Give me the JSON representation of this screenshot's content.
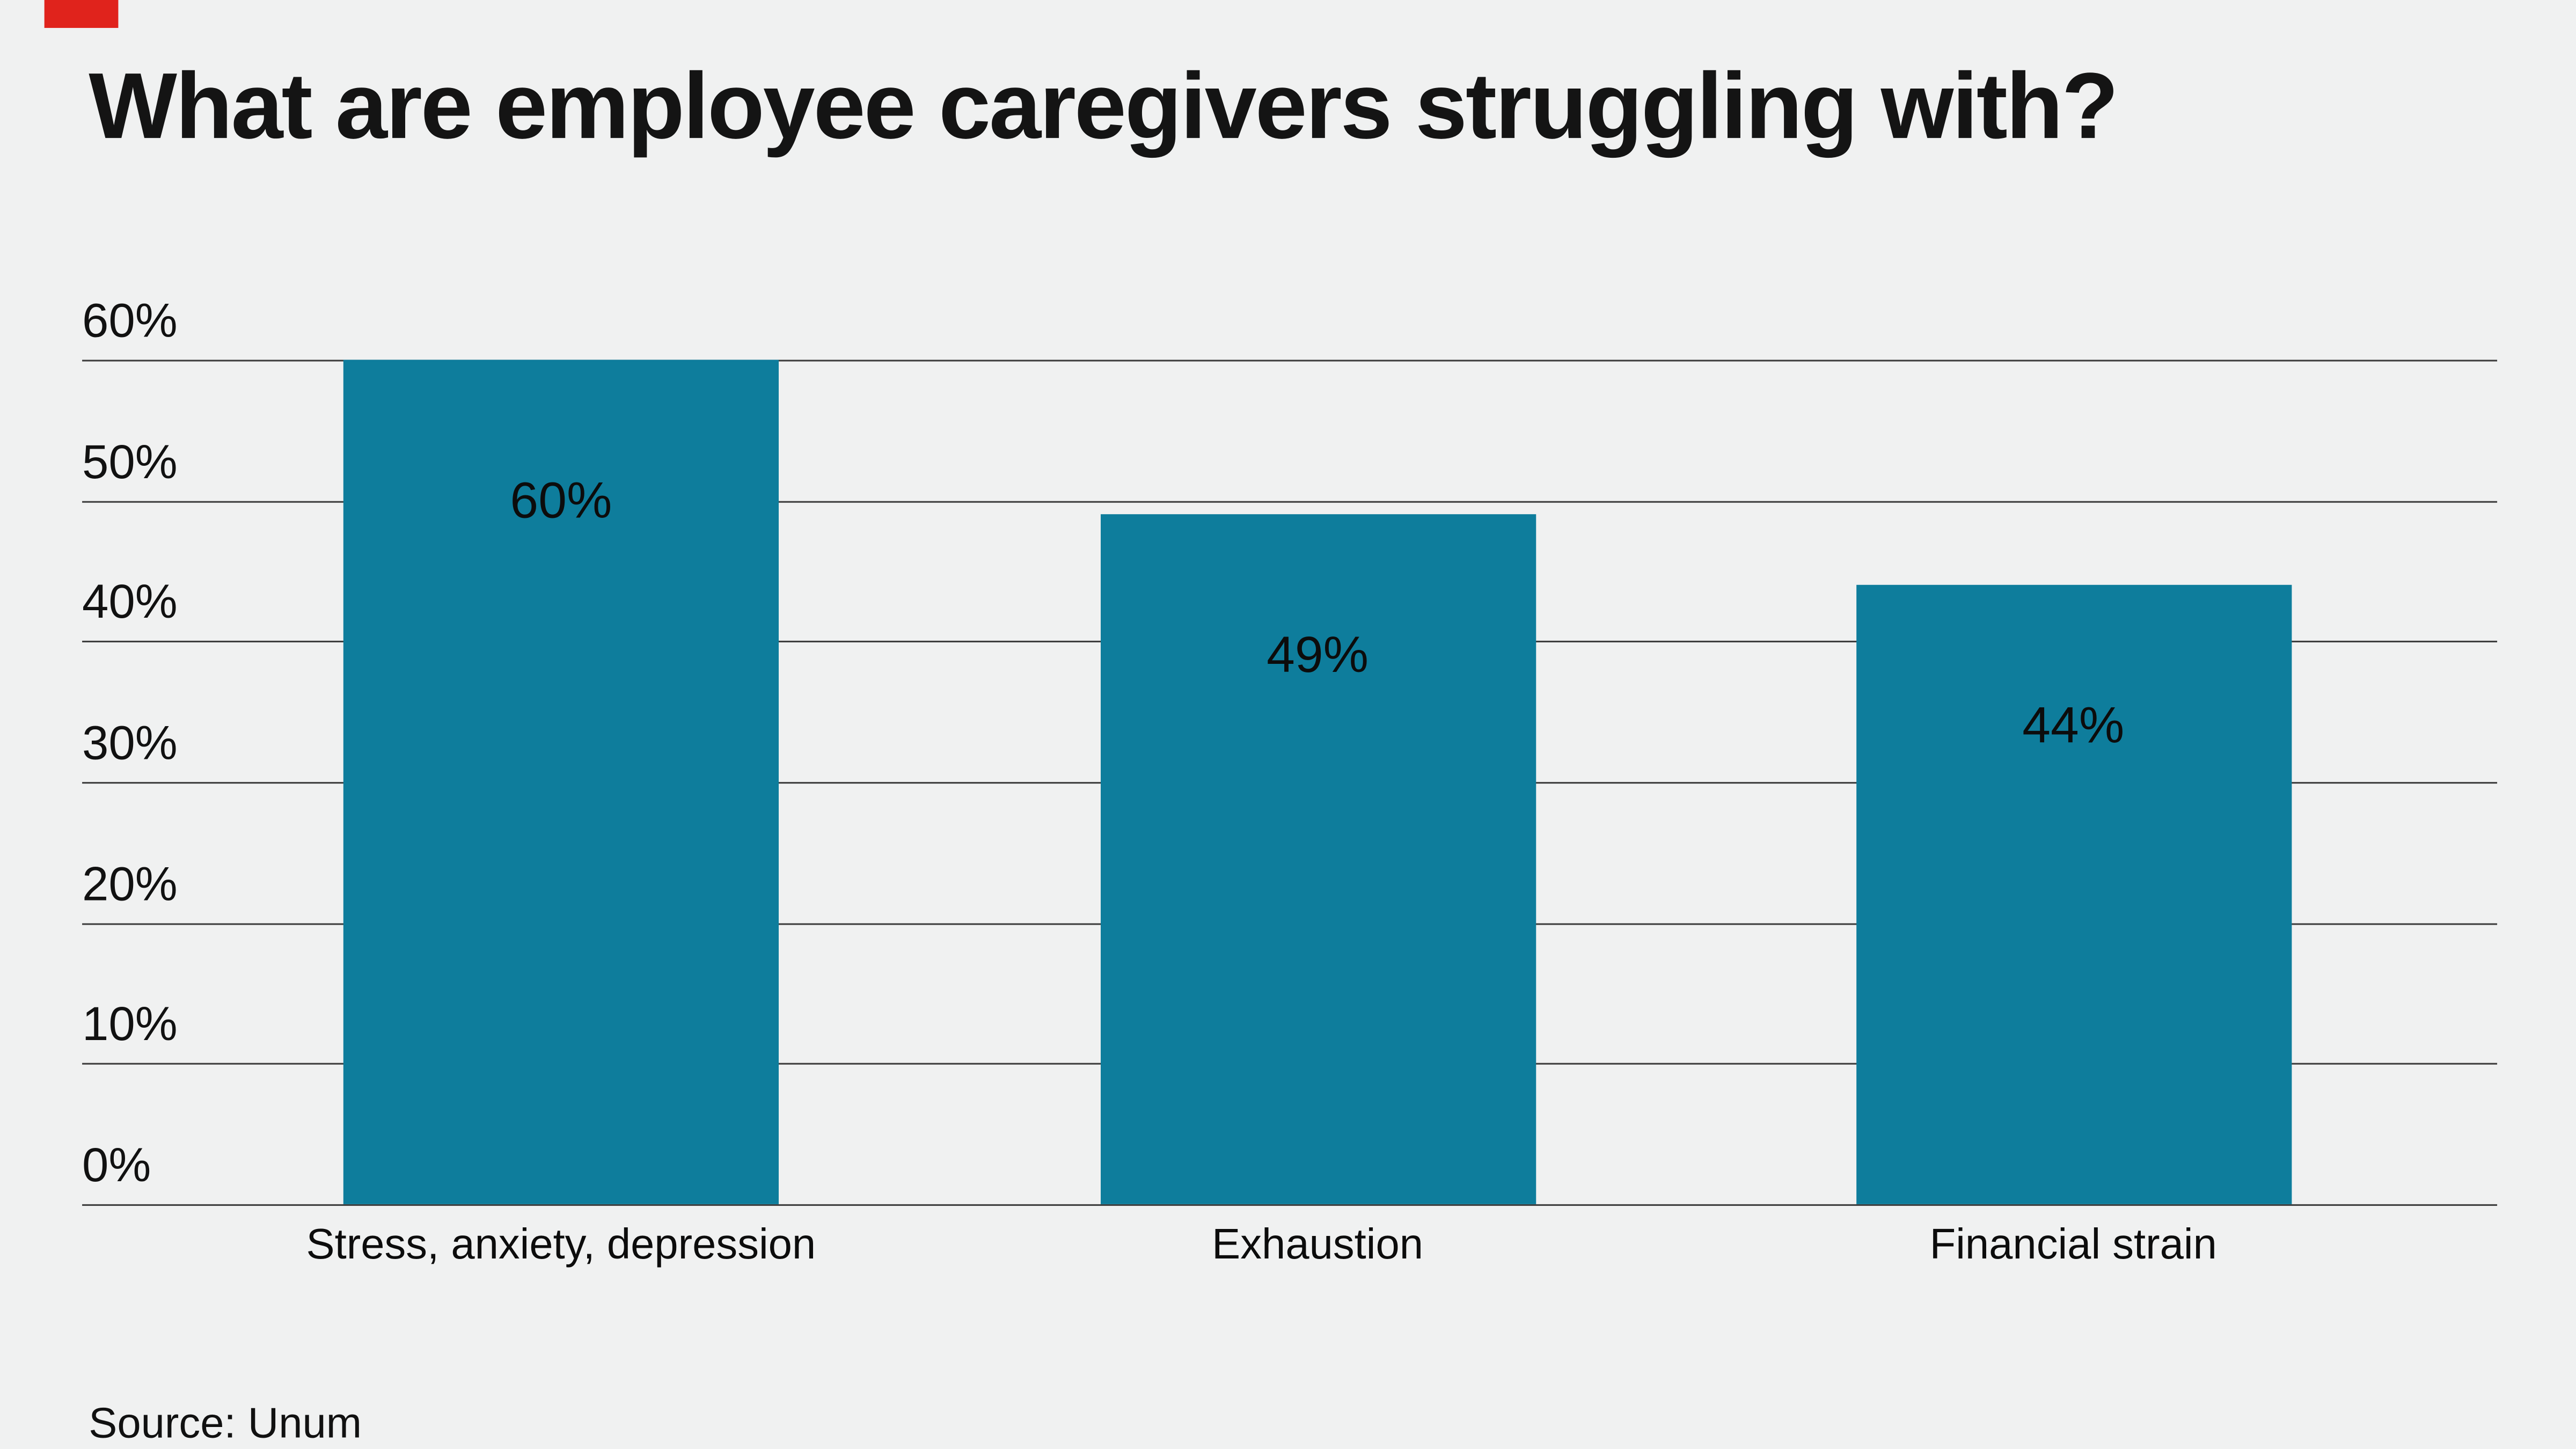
{
  "brand": {
    "strip_color": "#e0231c"
  },
  "chart_data": {
    "type": "bar",
    "title": "What are employee caregivers struggling with?",
    "categories": [
      "Stress, anxiety, depression",
      "Exhaustion",
      "Financial strain"
    ],
    "values": [
      60,
      49,
      44
    ],
    "value_labels": [
      "60%",
      "49%",
      "44%"
    ],
    "yticks": [
      0,
      10,
      20,
      30,
      40,
      50,
      60
    ],
    "ytick_labels": [
      "0%",
      "10%",
      "20%",
      "30%",
      "40%",
      "50%",
      "60%"
    ],
    "ylim": [
      0,
      60
    ],
    "xlabel": "",
    "ylabel": "",
    "grid": true,
    "legend": false,
    "bar_color": "#0e7d9c",
    "background_color": "#f0f1f1"
  },
  "source": "Source: Unum"
}
